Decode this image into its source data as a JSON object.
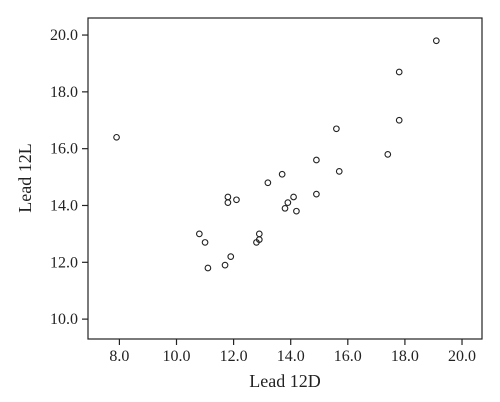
{
  "chart_data": {
    "type": "scatter",
    "title": "",
    "xlabel": "Lead 12D",
    "ylabel": "Lead 12L",
    "xlim": [
      6.9,
      20.7
    ],
    "ylim": [
      9.3,
      20.6
    ],
    "xticks": [
      "8.0",
      "10.0",
      "12.0",
      "14.0",
      "16.0",
      "18.0",
      "20.0"
    ],
    "yticks": [
      "10.0",
      "12.0",
      "14.0",
      "16.0",
      "18.0",
      "20.0"
    ],
    "grid": false,
    "legend": "none",
    "marker_color": "#222222",
    "points": [
      {
        "x": 7.9,
        "y": 16.4
      },
      {
        "x": 10.8,
        "y": 13.0
      },
      {
        "x": 11.0,
        "y": 12.7
      },
      {
        "x": 11.1,
        "y": 11.8
      },
      {
        "x": 11.7,
        "y": 11.9
      },
      {
        "x": 11.8,
        "y": 14.3
      },
      {
        "x": 11.8,
        "y": 14.1
      },
      {
        "x": 11.9,
        "y": 12.2
      },
      {
        "x": 12.1,
        "y": 14.2
      },
      {
        "x": 12.8,
        "y": 12.7
      },
      {
        "x": 12.9,
        "y": 12.8
      },
      {
        "x": 12.9,
        "y": 13.0
      },
      {
        "x": 13.2,
        "y": 14.8
      },
      {
        "x": 13.7,
        "y": 15.1
      },
      {
        "x": 13.8,
        "y": 13.9
      },
      {
        "x": 13.9,
        "y": 14.1
      },
      {
        "x": 14.1,
        "y": 14.3
      },
      {
        "x": 14.2,
        "y": 13.8
      },
      {
        "x": 14.9,
        "y": 15.6
      },
      {
        "x": 14.9,
        "y": 14.4
      },
      {
        "x": 15.6,
        "y": 16.7
      },
      {
        "x": 15.7,
        "y": 15.2
      },
      {
        "x": 17.4,
        "y": 15.8
      },
      {
        "x": 17.8,
        "y": 18.7
      },
      {
        "x": 17.8,
        "y": 17.0
      },
      {
        "x": 19.1,
        "y": 19.8
      }
    ]
  }
}
